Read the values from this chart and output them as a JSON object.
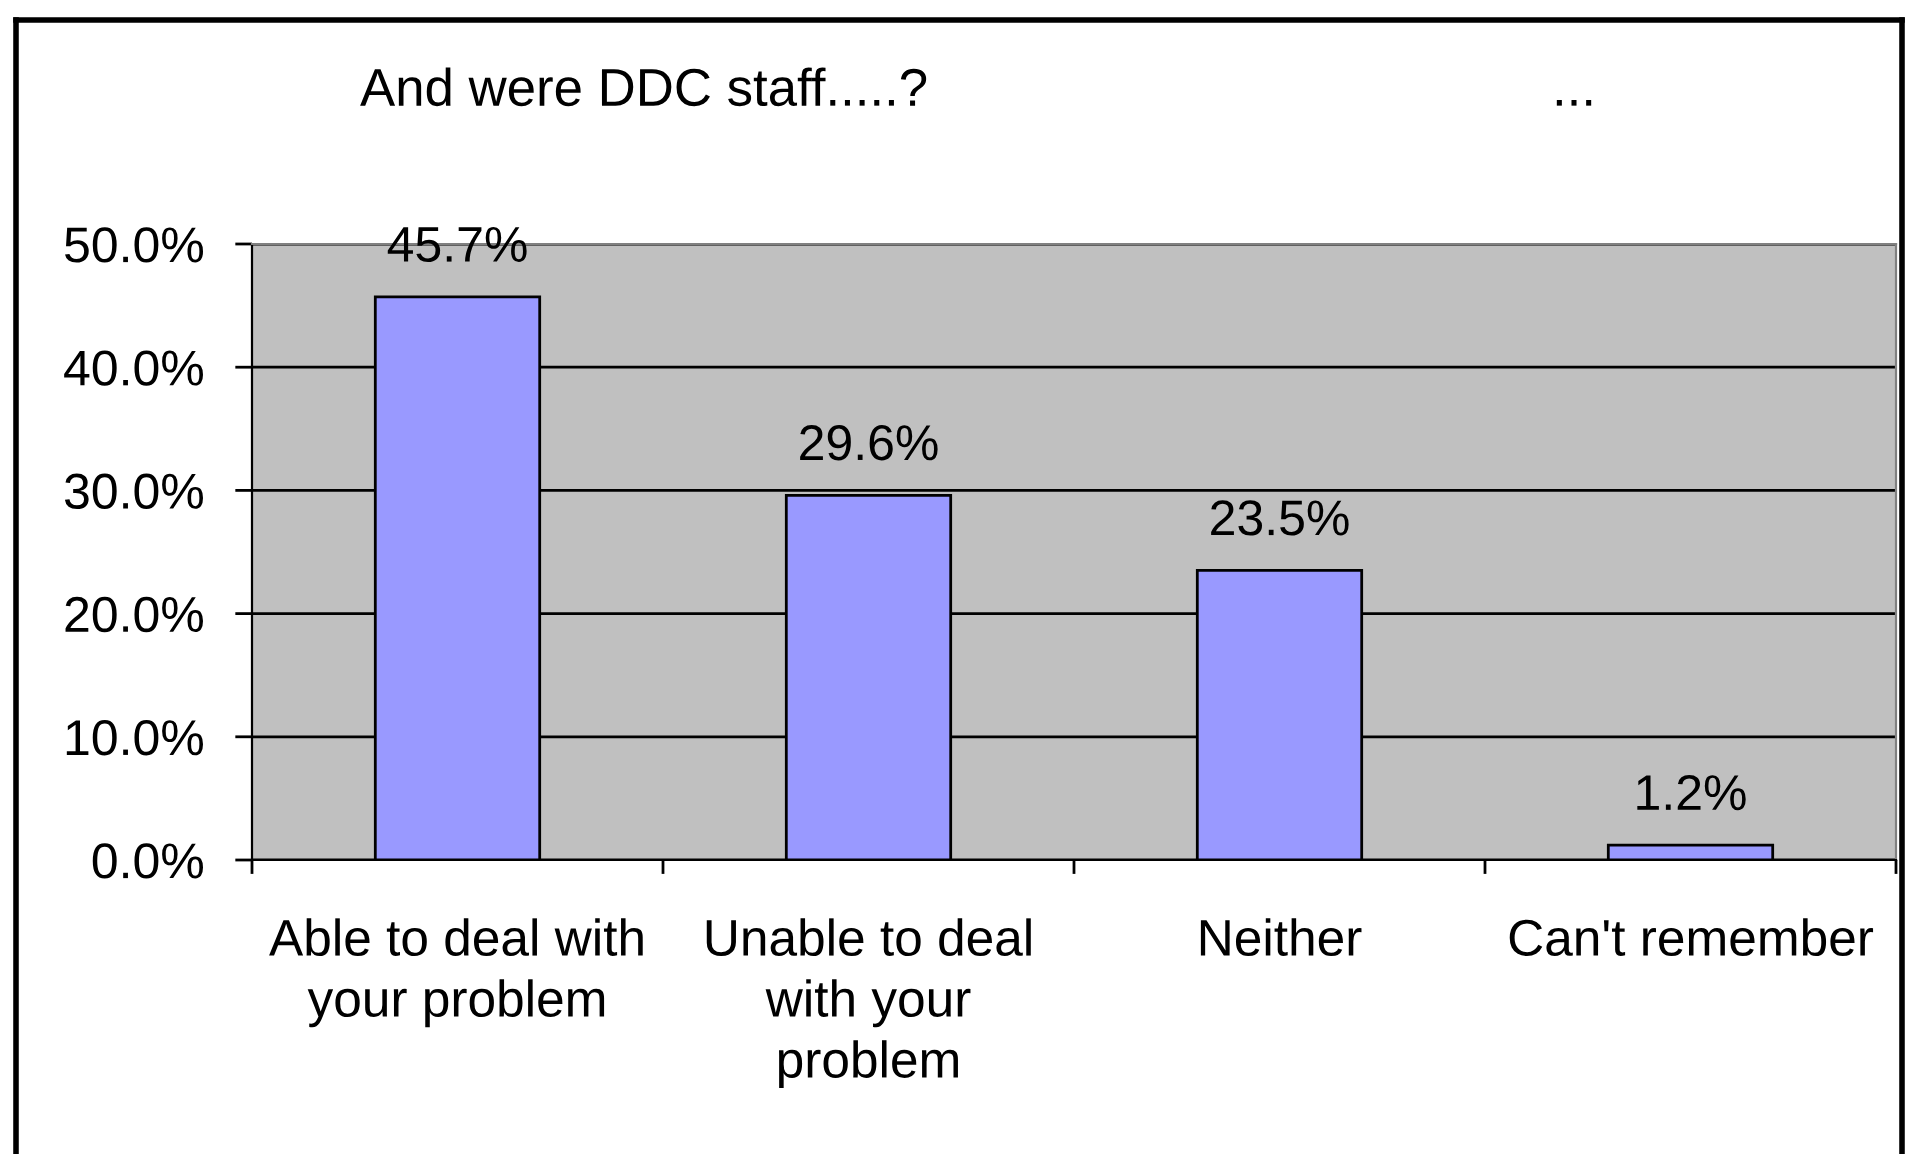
{
  "chart_data": {
    "type": "bar",
    "title": "And were DDC staff.....?",
    "annotations": [
      "..."
    ],
    "categories": [
      "Able to deal with your problem",
      "Unable to deal with your problem",
      "Neither",
      "Can't remember"
    ],
    "values": [
      45.7,
      29.6,
      23.5,
      1.2
    ],
    "value_labels": [
      "45.7%",
      "29.6%",
      "23.5%",
      "1.2%"
    ],
    "color": "#9999ff",
    "ylim": [
      0,
      50
    ],
    "yticks": [
      {
        "value": 0,
        "label": "0.0%"
      },
      {
        "value": 10,
        "label": "10.0%"
      },
      {
        "value": 20,
        "label": "20.0%"
      },
      {
        "value": 30,
        "label": "30.0%"
      },
      {
        "value": 40,
        "label": "40.0%"
      },
      {
        "value": 50,
        "label": "50.0%"
      }
    ],
    "grid": "y"
  }
}
